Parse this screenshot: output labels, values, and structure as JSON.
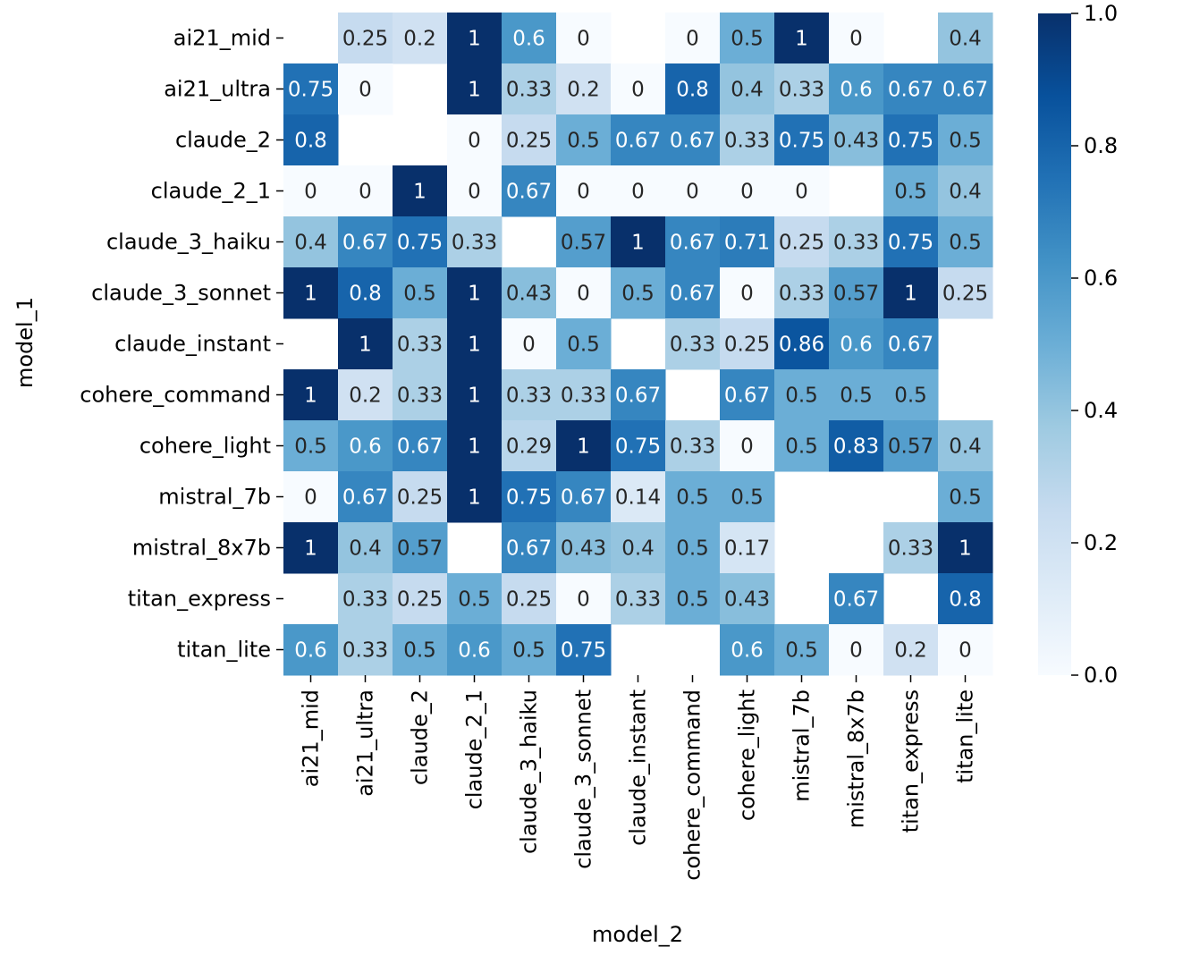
{
  "chart_data": {
    "type": "heatmap",
    "xlabel": "model_2",
    "ylabel": "model_1",
    "rows": [
      "ai21_mid",
      "ai21_ultra",
      "claude_2",
      "claude_2_1",
      "claude_3_haiku",
      "claude_3_sonnet",
      "claude_instant",
      "cohere_command",
      "cohere_light",
      "mistral_7b",
      "mistral_8x7b",
      "titan_express",
      "titan_lite"
    ],
    "columns": [
      "ai21_mid",
      "ai21_ultra",
      "claude_2",
      "claude_2_1",
      "claude_3_haiku",
      "claude_3_sonnet",
      "claude_instant",
      "cohere_command",
      "cohere_light",
      "mistral_7b",
      "mistral_8x7b",
      "titan_express",
      "titan_lite"
    ],
    "values": [
      [
        null,
        0.25,
        0.2,
        1,
        0.6,
        0,
        null,
        0,
        0.5,
        1,
        0,
        null,
        0.4
      ],
      [
        0.75,
        0,
        null,
        1,
        0.33,
        0.2,
        0,
        0.8,
        0.4,
        0.33,
        0.6,
        0.67,
        0.67
      ],
      [
        0.8,
        null,
        null,
        0,
        0.25,
        0.5,
        0.67,
        0.67,
        0.33,
        0.75,
        0.43,
        0.75,
        0.5
      ],
      [
        0,
        0,
        1,
        0,
        0.67,
        0,
        0,
        0,
        0,
        0,
        null,
        0.5,
        0.4
      ],
      [
        0.4,
        0.67,
        0.75,
        0.33,
        null,
        0.57,
        1,
        0.67,
        0.71,
        0.25,
        0.33,
        0.75,
        0.5
      ],
      [
        1,
        0.8,
        0.5,
        1,
        0.43,
        0,
        0.5,
        0.67,
        0,
        0.33,
        0.57,
        1,
        0.25
      ],
      [
        null,
        1,
        0.33,
        1,
        0,
        0.5,
        null,
        0.33,
        0.25,
        0.86,
        0.6,
        0.67,
        null
      ],
      [
        1,
        0.2,
        0.33,
        1,
        0.33,
        0.33,
        0.67,
        null,
        0.67,
        0.5,
        0.5,
        0.5,
        null
      ],
      [
        0.5,
        0.6,
        0.67,
        1,
        0.29,
        1,
        0.75,
        0.33,
        0,
        0.5,
        0.83,
        0.57,
        0.4
      ],
      [
        0,
        0.67,
        0.25,
        1,
        0.75,
        0.67,
        0.14,
        0.5,
        0.5,
        null,
        null,
        null,
        0.5
      ],
      [
        1,
        0.4,
        0.57,
        null,
        0.67,
        0.43,
        0.4,
        0.5,
        0.17,
        null,
        null,
        0.33,
        1
      ],
      [
        null,
        0.33,
        0.25,
        0.5,
        0.25,
        0,
        0.33,
        0.5,
        0.43,
        null,
        0.67,
        null,
        0.8
      ],
      [
        0.6,
        0.33,
        0.5,
        0.6,
        0.5,
        0.75,
        null,
        null,
        0.6,
        0.5,
        0,
        0.2,
        0
      ]
    ],
    "colormap": "Blues",
    "vmin": 0,
    "vmax": 1,
    "colorbar_ticks": [
      "0.0",
      "0.2",
      "0.4",
      "0.6",
      "0.8",
      "1.0"
    ]
  }
}
